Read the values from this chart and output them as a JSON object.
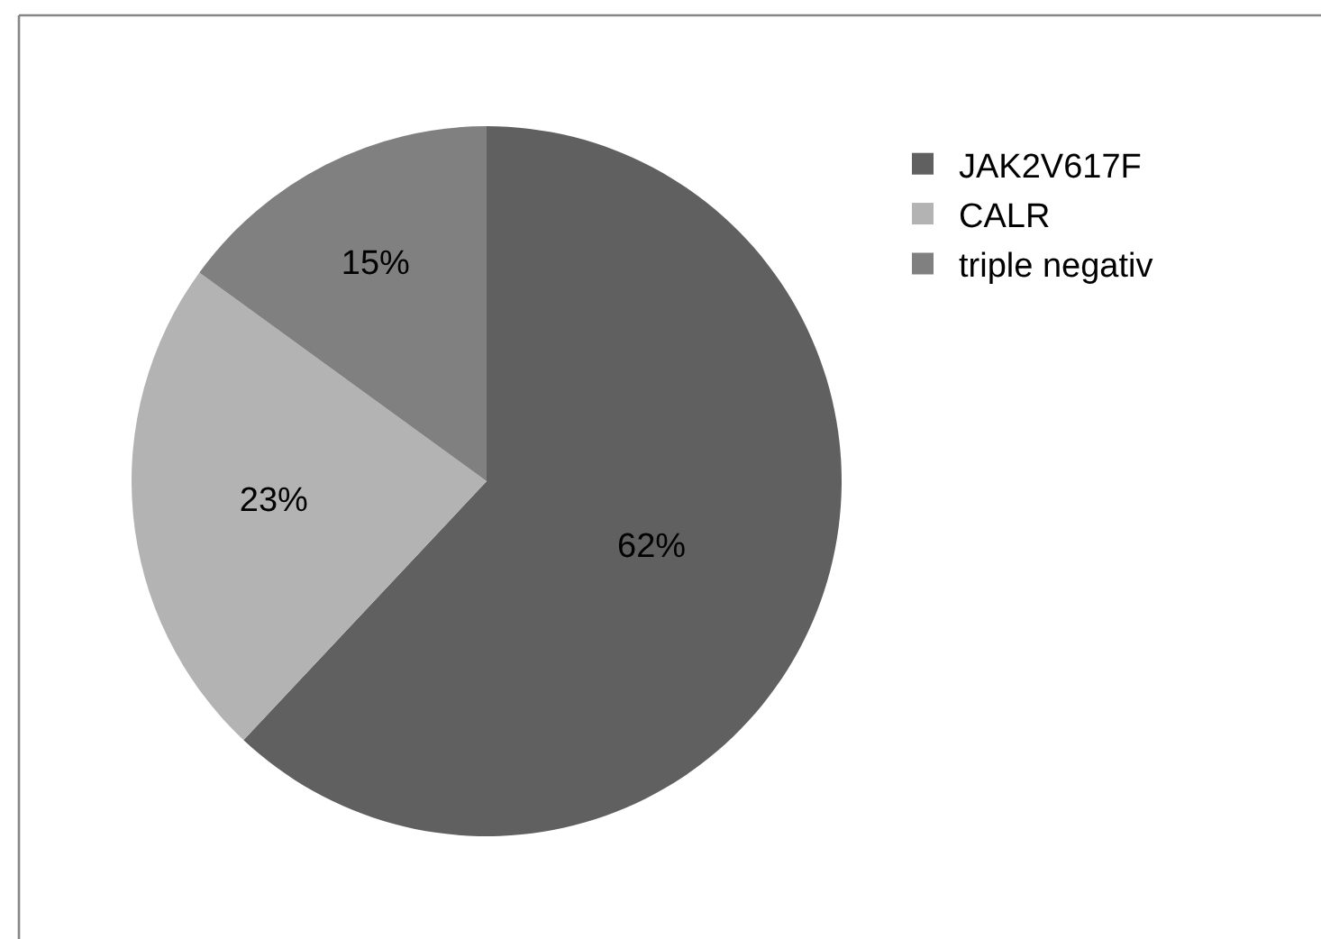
{
  "chart_data": {
    "type": "pie",
    "categories": [
      "JAK2V617F",
      "CALR",
      "triple negativ"
    ],
    "values": [
      62,
      23,
      15
    ],
    "value_labels": [
      "62%",
      "23%",
      "15%"
    ],
    "colors": [
      "#606060",
      "#b3b3b3",
      "#808080"
    ],
    "legend": "top right"
  }
}
